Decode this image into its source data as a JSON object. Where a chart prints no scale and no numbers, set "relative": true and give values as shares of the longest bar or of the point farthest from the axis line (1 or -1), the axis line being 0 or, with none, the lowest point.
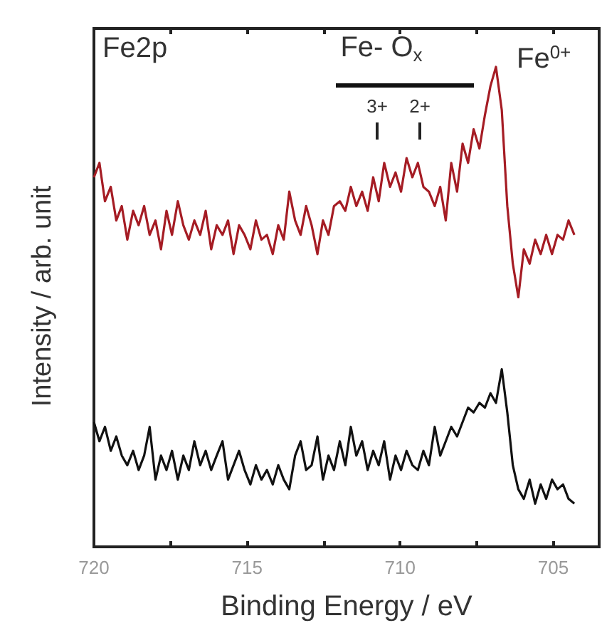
{
  "chart_data": {
    "type": "line",
    "relative": true,
    "xlabel": "Binding Energy / eV",
    "ylabel": "Intensity / arb. unit",
    "xlim": [
      720,
      703.5
    ],
    "xticks": [
      720,
      {
        "value": 717.5,
        "label": null
      },
      715,
      {
        "value": 712.5,
        "label": null
      },
      710,
      {
        "value": 707.5,
        "label": null
      },
      705
    ],
    "marker": "none",
    "line_style": "solid",
    "x": [
      720.0,
      719.82,
      719.64,
      719.45,
      719.27,
      719.09,
      718.91,
      718.72,
      718.54,
      718.36,
      718.18,
      717.99,
      717.81,
      717.63,
      717.45,
      717.26,
      717.08,
      716.9,
      716.72,
      716.53,
      716.35,
      716.17,
      715.99,
      715.8,
      715.62,
      715.44,
      715.26,
      715.08,
      714.89,
      714.71,
      714.53,
      714.35,
      714.16,
      713.98,
      713.8,
      713.62,
      713.43,
      713.25,
      713.07,
      712.89,
      712.7,
      712.52,
      712.34,
      712.16,
      711.97,
      711.79,
      711.61,
      711.43,
      711.24,
      711.06,
      710.88,
      710.7,
      710.52,
      710.33,
      710.15,
      709.97,
      709.79,
      709.6,
      709.42,
      709.24,
      709.06,
      708.87,
      708.69,
      708.51,
      708.33,
      708.14,
      707.96,
      707.78,
      707.6,
      707.41,
      707.23,
      707.05,
      706.87,
      706.68,
      706.5,
      706.32,
      706.14,
      705.96,
      705.77,
      705.59,
      705.41,
      705.23,
      705.04,
      704.86,
      704.68,
      704.5,
      704.31
    ],
    "series": [
      {
        "color": "#a51c24",
        "values": [
          0.77,
          0.8,
          0.72,
          0.75,
          0.68,
          0.71,
          0.64,
          0.7,
          0.67,
          0.71,
          0.65,
          0.68,
          0.62,
          0.7,
          0.65,
          0.72,
          0.67,
          0.64,
          0.68,
          0.65,
          0.7,
          0.62,
          0.67,
          0.65,
          0.68,
          0.61,
          0.67,
          0.65,
          0.62,
          0.68,
          0.64,
          0.65,
          0.61,
          0.67,
          0.64,
          0.74,
          0.68,
          0.65,
          0.71,
          0.67,
          0.61,
          0.68,
          0.65,
          0.71,
          0.72,
          0.7,
          0.75,
          0.71,
          0.74,
          0.7,
          0.77,
          0.72,
          0.8,
          0.75,
          0.78,
          0.74,
          0.81,
          0.77,
          0.8,
          0.75,
          0.74,
          0.71,
          0.75,
          0.68,
          0.8,
          0.74,
          0.84,
          0.8,
          0.87,
          0.83,
          0.9,
          0.96,
          1,
          0.91,
          0.71,
          0.59,
          0.52,
          0.62,
          0.59,
          0.64,
          0.61,
          0.65,
          0.61,
          0.65,
          0.64,
          0.68,
          0.65
        ]
      },
      {
        "color": "#111111",
        "values": [
          0.26,
          0.22,
          0.25,
          0.2,
          0.23,
          0.19,
          0.17,
          0.2,
          0.16,
          0.19,
          0.25,
          0.14,
          0.19,
          0.16,
          0.2,
          0.14,
          0.19,
          0.16,
          0.22,
          0.17,
          0.2,
          0.16,
          0.19,
          0.22,
          0.14,
          0.17,
          0.2,
          0.16,
          0.13,
          0.17,
          0.14,
          0.16,
          0.13,
          0.17,
          0.14,
          0.12,
          0.19,
          0.22,
          0.16,
          0.17,
          0.23,
          0.14,
          0.19,
          0.16,
          0.22,
          0.17,
          0.25,
          0.19,
          0.22,
          0.16,
          0.2,
          0.17,
          0.22,
          0.14,
          0.19,
          0.16,
          0.2,
          0.17,
          0.16,
          0.2,
          0.17,
          0.25,
          0.19,
          0.22,
          0.25,
          0.23,
          0.26,
          0.29,
          0.28,
          0.3,
          0.29,
          0.32,
          0.3,
          0.37,
          0.28,
          0.17,
          0.12,
          0.1,
          0.14,
          0.09,
          0.13,
          0.1,
          0.14,
          0.12,
          0.13,
          0.1,
          0.09
        ]
      }
    ],
    "annotations": [
      "Fe2p",
      "Fe- O$_{x}$",
      "3+",
      "2+",
      "Fe$^{0+}$"
    ]
  }
}
